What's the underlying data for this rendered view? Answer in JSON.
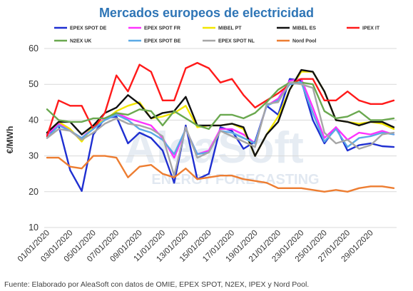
{
  "chart_data": {
    "type": "line",
    "title": "Mercados europeos de electricidad",
    "ylabel": "€/MWh",
    "xlabel": "",
    "ylim": [
      10,
      60
    ],
    "yticks": [
      10,
      20,
      30,
      40,
      50,
      60
    ],
    "grid": true,
    "legend_position": "top",
    "x": [
      "01/01/2020",
      "02/01/2020",
      "03/01/2020",
      "04/01/2020",
      "05/01/2020",
      "06/01/2020",
      "07/01/2020",
      "08/01/2020",
      "09/01/2020",
      "10/01/2020",
      "11/01/2020",
      "12/01/2020",
      "13/01/2020",
      "14/01/2020",
      "15/01/2020",
      "16/01/2020",
      "17/01/2020",
      "18/01/2020",
      "19/01/2020",
      "20/01/2020",
      "21/01/2020",
      "22/01/2020",
      "23/01/2020",
      "24/01/2020",
      "25/01/2020",
      "26/01/2020",
      "27/01/2020",
      "28/01/2020",
      "29/01/2020",
      "30/01/2020",
      "31/01/2020"
    ],
    "xtick_labels": [
      "01/01/2020",
      "03/01/2020",
      "05/01/2020",
      "07/01/2020",
      "09/01/2020",
      "11/01/2020",
      "13/01/2020",
      "15/01/2020",
      "17/01/2020",
      "19/01/2020",
      "21/01/2020",
      "23/01/2020",
      "25/01/2020",
      "27/01/2020",
      "29/01/2020"
    ],
    "series": [
      {
        "name": "EPEX SPOT DE",
        "color": "#1f2fd1",
        "values": [
          36,
          38.5,
          26,
          20.2,
          36,
          40.5,
          41,
          33.5,
          36.5,
          35,
          31.5,
          22.5,
          38.5,
          23.5,
          25,
          38,
          37,
          32,
          34,
          44,
          41.5,
          51.5,
          51,
          40,
          33.5,
          38,
          31.5,
          33,
          33.5,
          32.7,
          32.5
        ]
      },
      {
        "name": "EPEX SPOT FR",
        "color": "#ff33ff",
        "values": [
          36,
          39,
          37,
          35,
          38,
          40.5,
          42,
          40.5,
          39.5,
          38.5,
          35,
          29.5,
          37.5,
          30.5,
          31.5,
          37.5,
          37.5,
          36,
          33.5,
          44,
          46,
          51,
          51.5,
          43.5,
          35,
          38,
          34.5,
          36.5,
          36,
          37,
          36
        ]
      },
      {
        "name": "MIBEL PT",
        "color": "#f2e600",
        "values": [
          36.5,
          39.5,
          37.5,
          34,
          38.5,
          40,
          42.5,
          44,
          45,
          40.5,
          41,
          42,
          44,
          38,
          38.5,
          38.5,
          39,
          37.5,
          30,
          36,
          41,
          48.5,
          53.5,
          53.5,
          48,
          40,
          39.5,
          39,
          39.5,
          39,
          37.5
        ]
      },
      {
        "name": "MIBEL ES",
        "color": "#111111",
        "values": [
          36.5,
          39.5,
          39.5,
          36,
          38.5,
          42,
          43.5,
          47,
          44.5,
          40.5,
          42,
          42.5,
          46.5,
          38.5,
          38.5,
          38.5,
          39,
          38,
          30,
          36,
          39.5,
          48.5,
          54,
          53.5,
          48,
          40,
          39.5,
          38.5,
          39.5,
          39.5,
          38
        ]
      },
      {
        "name": "IPEX IT",
        "color": "#ff1a1a",
        "values": [
          35.5,
          45.5,
          44,
          44,
          37.5,
          42,
          52.5,
          48,
          55.5,
          53.5,
          45.5,
          45.5,
          54.5,
          56,
          54.5,
          50.5,
          51.5,
          47,
          43.5,
          45.5,
          47.5,
          50,
          51.5,
          51.5,
          45.5,
          45.5,
          48,
          45.5,
          44.5,
          44.5,
          45.5
        ]
      },
      {
        "name": "N2EX UK",
        "color": "#6aa84f",
        "values": [
          43,
          40,
          39.5,
          39.5,
          40.5,
          40.5,
          42,
          41.5,
          43,
          42.5,
          38.5,
          42.5,
          40.5,
          38.5,
          37.5,
          41.5,
          41.5,
          40.5,
          42,
          45,
          48.5,
          50.5,
          50.5,
          50,
          42.5,
          40.5,
          41,
          42.5,
          40,
          40,
          40.5
        ]
      },
      {
        "name": "EPEX SPOT BE",
        "color": "#5aa9e6",
        "values": [
          35,
          38.5,
          37,
          35,
          37.5,
          40,
          41.5,
          40,
          37.5,
          36.5,
          34.5,
          30.5,
          37.5,
          30.5,
          31,
          37,
          36.5,
          35,
          33.5,
          44,
          45.5,
          50,
          50.5,
          42,
          34,
          37.5,
          32.5,
          35,
          35.5,
          36.5,
          36
        ]
      },
      {
        "name": "EPEX SPOT NL",
        "color": "#a6a6a6",
        "values": [
          35,
          37.5,
          37,
          34.5,
          36.5,
          39,
          40.5,
          39,
          38.5,
          37.5,
          35.5,
          24.5,
          38,
          29.5,
          31,
          37,
          35.5,
          34,
          32.5,
          44.5,
          45,
          50.5,
          50,
          49,
          36.5,
          33.5,
          34.5,
          32,
          33,
          36,
          36.5
        ]
      },
      {
        "name": "Nord Pool",
        "color": "#ed7d31",
        "values": [
          29.5,
          29.5,
          27,
          26.5,
          30,
          30,
          29.5,
          24,
          27,
          27.5,
          25,
          24,
          26.5,
          23.5,
          24,
          24.5,
          24.5,
          23.5,
          23,
          22.5,
          21,
          21,
          21,
          20.5,
          20,
          20.5,
          20,
          21,
          21.5,
          21.5,
          21
        ]
      }
    ]
  },
  "watermark": {
    "brand": "AleaSoft",
    "tagline": "ENERGY FORECASTING"
  },
  "footer": {
    "source": "Fuente: Elaborado por AleaSoft con datos de OMIE, EPEX SPOT, N2EX, IPEX y Nord Pool."
  }
}
